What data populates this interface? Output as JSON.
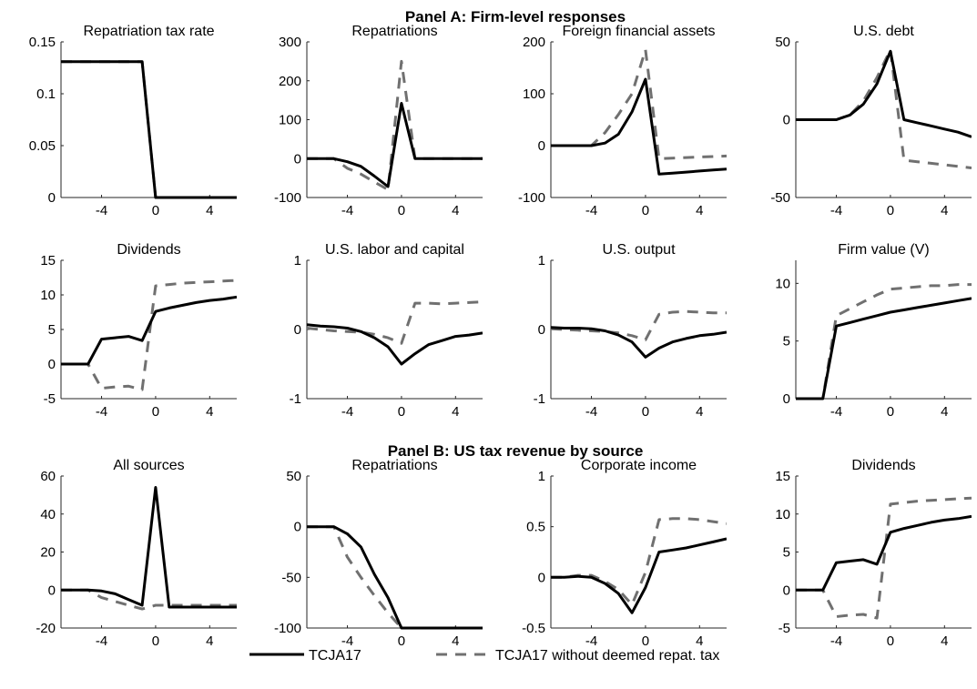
{
  "panels": [
    {
      "title": "Panel A: Firm-level responses"
    },
    {
      "title": "Panel B: US tax revenue by source"
    }
  ],
  "legend": {
    "entries": [
      "TCJA17",
      "TCJA17 without deemed repat. tax"
    ]
  },
  "colors": {
    "series1": "#000000",
    "series2": "#707070"
  },
  "chart_data": [
    {
      "type": "line",
      "title": "Repatriation tax rate",
      "panel": "Panel A: Firm-level responses",
      "xlim": [
        -7,
        6
      ],
      "ylim": [
        0,
        0.15
      ],
      "xticks": [
        -4,
        0,
        4
      ],
      "yticks": [
        0,
        0.05,
        0.1,
        0.15
      ],
      "ytick_labels": [
        "0",
        "0.05",
        "0.1",
        "0.15"
      ],
      "series": [
        {
          "name": "TCJA17",
          "x": [
            -7,
            -6,
            -5,
            -4,
            -3,
            -2,
            -1,
            0,
            1,
            2,
            3,
            4,
            5,
            6
          ],
          "y": [
            0.131,
            0.131,
            0.131,
            0.131,
            0.131,
            0.131,
            0.131,
            0,
            0,
            0,
            0,
            0,
            0,
            0
          ]
        },
        {
          "name": "TCJA17 without deemed repat. tax",
          "x": [
            -7,
            -6,
            -5,
            -4,
            -3,
            -2,
            -1,
            0,
            1,
            2,
            3,
            4,
            5,
            6
          ],
          "y": [
            0.131,
            0.131,
            0.131,
            0.131,
            0.131,
            0.131,
            0.131,
            0,
            0,
            0,
            0,
            0,
            0,
            0
          ]
        }
      ]
    },
    {
      "type": "line",
      "title": "Repatriations",
      "panel": "Panel A: Firm-level responses",
      "xlim": [
        -7,
        6
      ],
      "ylim": [
        -100,
        300
      ],
      "xticks": [
        -4,
        0,
        4
      ],
      "yticks": [
        -100,
        0,
        100,
        200,
        300
      ],
      "ytick_labels": [
        "-100",
        "0",
        "100",
        "200",
        "300"
      ],
      "series": [
        {
          "name": "TCJA17",
          "x": [
            -7,
            -6,
            -5,
            -4,
            -3,
            -2,
            -1,
            0,
            1,
            2,
            3,
            4,
            5,
            6
          ],
          "y": [
            0,
            0,
            0,
            -8,
            -20,
            -45,
            -72,
            142,
            0,
            0,
            0,
            0,
            0,
            0
          ]
        },
        {
          "name": "TCJA17 without deemed repat. tax",
          "x": [
            -7,
            -6,
            -5,
            -4,
            -3,
            -2,
            -1,
            0,
            1,
            2,
            3,
            4,
            5,
            6
          ],
          "y": [
            0,
            0,
            0,
            -25,
            -40,
            -60,
            -80,
            250,
            0,
            0,
            0,
            0,
            0,
            0
          ]
        }
      ]
    },
    {
      "type": "line",
      "title": "Foreign financial assets",
      "panel": "Panel A: Firm-level responses",
      "xlim": [
        -7,
        6
      ],
      "ylim": [
        -100,
        200
      ],
      "xticks": [
        -4,
        0,
        4
      ],
      "yticks": [
        -100,
        0,
        100,
        200
      ],
      "ytick_labels": [
        "-100",
        "0",
        "100",
        "200"
      ],
      "series": [
        {
          "name": "TCJA17",
          "x": [
            -7,
            -6,
            -5,
            -4,
            -3,
            -2,
            -1,
            0,
            1,
            2,
            3,
            4,
            5,
            6
          ],
          "y": [
            0,
            0,
            0,
            0,
            5,
            22,
            65,
            128,
            -55,
            -53,
            -51,
            -49,
            -47,
            -45
          ]
        },
        {
          "name": "TCJA17 without deemed repat. tax",
          "x": [
            -7,
            -6,
            -5,
            -4,
            -3,
            -2,
            -1,
            0,
            1,
            2,
            3,
            4,
            5,
            6
          ],
          "y": [
            0,
            0,
            0,
            0,
            25,
            60,
            100,
            185,
            -25,
            -24,
            -23,
            -22,
            -21,
            -20
          ]
        }
      ]
    },
    {
      "type": "line",
      "title": "U.S. debt",
      "panel": "Panel A: Firm-level responses",
      "xlim": [
        -7,
        6
      ],
      "ylim": [
        -50,
        50
      ],
      "xticks": [
        -4,
        0,
        4
      ],
      "yticks": [
        -50,
        0,
        50
      ],
      "ytick_labels": [
        "-50",
        "0",
        "50"
      ],
      "series": [
        {
          "name": "TCJA17",
          "x": [
            -7,
            -6,
            -5,
            -4,
            -3,
            -2,
            -1,
            0,
            1,
            2,
            3,
            4,
            5,
            6
          ],
          "y": [
            0,
            0,
            0,
            0,
            3,
            10,
            23,
            44,
            0,
            -2,
            -4,
            -6,
            -8,
            -11
          ]
        },
        {
          "name": "TCJA17 without deemed repat. tax",
          "x": [
            -7,
            -6,
            -5,
            -4,
            -3,
            -2,
            -1,
            0,
            1,
            2,
            3,
            4,
            5,
            6
          ],
          "y": [
            0,
            0,
            0,
            0,
            3,
            12,
            27,
            45,
            -26,
            -27,
            -28,
            -29,
            -30,
            -31
          ]
        }
      ]
    },
    {
      "type": "line",
      "title": "Dividends",
      "panel": "Panel A: Firm-level responses",
      "xlim": [
        -7,
        6
      ],
      "ylim": [
        -5,
        15
      ],
      "xticks": [
        -4,
        0,
        4
      ],
      "yticks": [
        -5,
        0,
        5,
        10,
        15
      ],
      "ytick_labels": [
        "-5",
        "0",
        "5",
        "10",
        "15"
      ],
      "series": [
        {
          "name": "TCJA17",
          "x": [
            -7,
            -6,
            -5,
            -4,
            -3,
            -2,
            -1,
            0,
            1,
            2,
            3,
            4,
            5,
            6
          ],
          "y": [
            0,
            0,
            0,
            3.6,
            3.8,
            4.0,
            3.4,
            7.6,
            8.1,
            8.5,
            8.9,
            9.2,
            9.4,
            9.7
          ]
        },
        {
          "name": "TCJA17 without deemed repat. tax",
          "x": [
            -7,
            -6,
            -5,
            -4,
            -3,
            -2,
            -1,
            0,
            1,
            2,
            3,
            4,
            5,
            6
          ],
          "y": [
            0,
            0,
            0,
            -3.5,
            -3.3,
            -3.2,
            -3.7,
            11.3,
            11.5,
            11.7,
            11.8,
            11.9,
            12.0,
            12.1
          ]
        }
      ]
    },
    {
      "type": "line",
      "title": "U.S. labor and capital",
      "panel": "Panel A: Firm-level responses",
      "xlim": [
        -7,
        6
      ],
      "ylim": [
        -1,
        1
      ],
      "xticks": [
        -4,
        0,
        4
      ],
      "yticks": [
        -1,
        0,
        1
      ],
      "ytick_labels": [
        "-1",
        "0",
        "1"
      ],
      "series": [
        {
          "name": "TCJA17",
          "x": [
            -7,
            -6,
            -5,
            -4,
            -3,
            -2,
            -1,
            0,
            1,
            2,
            3,
            4,
            5,
            6
          ],
          "y": [
            0.07,
            0.05,
            0.04,
            0.02,
            -0.03,
            -0.12,
            -0.25,
            -0.5,
            -0.35,
            -0.22,
            -0.16,
            -0.1,
            -0.08,
            -0.05
          ]
        },
        {
          "name": "TCJA17 without deemed repat. tax",
          "x": [
            -7,
            -6,
            -5,
            -4,
            -3,
            -2,
            -1,
            0,
            1,
            2,
            3,
            4,
            5,
            6
          ],
          "y": [
            0.02,
            0,
            -0.02,
            -0.03,
            -0.04,
            -0.07,
            -0.12,
            -0.2,
            0.38,
            0.38,
            0.37,
            0.38,
            0.39,
            0.4
          ]
        }
      ]
    },
    {
      "type": "line",
      "title": "U.S. output",
      "panel": "Panel A: Firm-level responses",
      "xlim": [
        -7,
        6
      ],
      "ylim": [
        -1,
        1
      ],
      "xticks": [
        -4,
        0,
        4
      ],
      "yticks": [
        -1,
        0,
        1
      ],
      "ytick_labels": [
        "-1",
        "0",
        "1"
      ],
      "series": [
        {
          "name": "TCJA17",
          "x": [
            -7,
            -6,
            -5,
            -4,
            -3,
            -2,
            -1,
            0,
            1,
            2,
            3,
            4,
            5,
            6
          ],
          "y": [
            0.03,
            0.02,
            0.02,
            0.01,
            -0.02,
            -0.08,
            -0.18,
            -0.4,
            -0.27,
            -0.18,
            -0.13,
            -0.09,
            -0.07,
            -0.04
          ]
        },
        {
          "name": "TCJA17 without deemed repat. tax",
          "x": [
            -7,
            -6,
            -5,
            -4,
            -3,
            -2,
            -1,
            0,
            1,
            2,
            3,
            4,
            5,
            6
          ],
          "y": [
            0.01,
            0,
            -0.01,
            -0.02,
            -0.03,
            -0.05,
            -0.09,
            -0.15,
            0.22,
            0.25,
            0.26,
            0.25,
            0.24,
            0.24
          ]
        }
      ]
    },
    {
      "type": "line",
      "title": "Firm value (V)",
      "panel": "Panel A: Firm-level responses",
      "xlim": [
        -7,
        6
      ],
      "ylim": [
        0,
        12
      ],
      "xticks": [
        -4,
        0,
        4
      ],
      "yticks": [
        0,
        5,
        10
      ],
      "ytick_labels": [
        "0",
        "5",
        "10"
      ],
      "series": [
        {
          "name": "TCJA17",
          "x": [
            -7,
            -6,
            -5,
            -4,
            -3,
            -2,
            -1,
            0,
            1,
            2,
            3,
            4,
            5,
            6
          ],
          "y": [
            0,
            0,
            0,
            6.3,
            6.6,
            6.9,
            7.2,
            7.5,
            7.7,
            7.9,
            8.1,
            8.3,
            8.5,
            8.7
          ]
        },
        {
          "name": "TCJA17 without deemed repat. tax",
          "x": [
            -7,
            -6,
            -5,
            -4,
            -3,
            -2,
            -1,
            0,
            1,
            2,
            3,
            4,
            5,
            6
          ],
          "y": [
            0,
            0,
            0,
            7.2,
            7.8,
            8.4,
            9.0,
            9.5,
            9.6,
            9.7,
            9.8,
            9.8,
            9.9,
            9.9
          ]
        }
      ]
    },
    {
      "type": "line",
      "title": "All sources",
      "panel": "Panel B: US tax revenue by source",
      "xlim": [
        -7,
        6
      ],
      "ylim": [
        -20,
        60
      ],
      "xticks": [
        -4,
        0,
        4
      ],
      "yticks": [
        -20,
        0,
        20,
        40,
        60
      ],
      "ytick_labels": [
        "-20",
        "0",
        "20",
        "40",
        "60"
      ],
      "series": [
        {
          "name": "TCJA17",
          "x": [
            -7,
            -6,
            -5,
            -4,
            -3,
            -2,
            -1,
            0,
            1,
            2,
            3,
            4,
            5,
            6
          ],
          "y": [
            0,
            0,
            0,
            -0.5,
            -2,
            -5,
            -8,
            54,
            -9,
            -9,
            -9,
            -9,
            -9,
            -9
          ]
        },
        {
          "name": "TCJA17 without deemed repat. tax",
          "x": [
            -7,
            -6,
            -5,
            -4,
            -3,
            -2,
            -1,
            0,
            1,
            2,
            3,
            4,
            5,
            6
          ],
          "y": [
            0,
            0,
            0,
            -4,
            -6,
            -8,
            -10,
            -8,
            -8,
            -8,
            -8,
            -8,
            -8,
            -8
          ]
        }
      ]
    },
    {
      "type": "line",
      "title": "Repatriations",
      "panel": "Panel B: US tax revenue by source",
      "xlim": [
        -7,
        6
      ],
      "ylim": [
        -100,
        50
      ],
      "xticks": [
        -4,
        0,
        4
      ],
      "yticks": [
        -100,
        -50,
        0,
        50
      ],
      "ytick_labels": [
        "-100",
        "-50",
        "0",
        "50"
      ],
      "series": [
        {
          "name": "TCJA17",
          "x": [
            -7,
            -6,
            -5,
            -4,
            -3,
            -2,
            -1,
            0,
            1,
            2,
            3,
            4,
            5,
            6
          ],
          "y": [
            0,
            0,
            0,
            -7,
            -20,
            -47,
            -70,
            -100,
            -100,
            -100,
            -100,
            -100,
            -100,
            -100
          ]
        },
        {
          "name": "TCJA17 without deemed repat. tax",
          "x": [
            -7,
            -6,
            -5,
            -4,
            -3,
            -2,
            -1,
            0,
            1,
            2,
            3,
            4,
            5,
            6
          ],
          "y": [
            0,
            0,
            0,
            -30,
            -50,
            -68,
            -85,
            -100,
            -100,
            -100,
            -100,
            -100,
            -100,
            -100
          ]
        }
      ]
    },
    {
      "type": "line",
      "title": "Corporate income",
      "panel": "Panel B: US tax revenue by source",
      "xlim": [
        -7,
        6
      ],
      "ylim": [
        -0.5,
        1
      ],
      "xticks": [
        -4,
        0,
        4
      ],
      "yticks": [
        -0.5,
        0,
        0.5,
        1
      ],
      "ytick_labels": [
        "-0.5",
        "0",
        "0.5",
        "1"
      ],
      "series": [
        {
          "name": "TCJA17",
          "x": [
            -7,
            -6,
            -5,
            -4,
            -3,
            -2,
            -1,
            0,
            1,
            2,
            3,
            4,
            5,
            6
          ],
          "y": [
            0,
            0,
            0.01,
            0,
            -0.06,
            -0.16,
            -0.35,
            -0.1,
            0.25,
            0.27,
            0.29,
            0.32,
            0.35,
            0.38
          ]
        },
        {
          "name": "TCJA17 without deemed repat. tax",
          "x": [
            -7,
            -6,
            -5,
            -4,
            -3,
            -2,
            -1,
            0,
            1,
            2,
            3,
            4,
            5,
            6
          ],
          "y": [
            0,
            0,
            0.02,
            0.02,
            -0.04,
            -0.12,
            -0.27,
            0.05,
            0.57,
            0.58,
            0.58,
            0.57,
            0.55,
            0.53
          ]
        }
      ]
    },
    {
      "type": "line",
      "title": "Dividends",
      "panel": "Panel B: US tax revenue by source",
      "xlim": [
        -7,
        6
      ],
      "ylim": [
        -5,
        15
      ],
      "xticks": [
        -4,
        0,
        4
      ],
      "yticks": [
        -5,
        0,
        5,
        10,
        15
      ],
      "ytick_labels": [
        "-5",
        "0",
        "5",
        "10",
        "15"
      ],
      "series": [
        {
          "name": "TCJA17",
          "x": [
            -7,
            -6,
            -5,
            -4,
            -3,
            -2,
            -1,
            0,
            1,
            2,
            3,
            4,
            5,
            6
          ],
          "y": [
            0,
            0,
            0,
            3.6,
            3.8,
            4.0,
            3.4,
            7.6,
            8.1,
            8.5,
            8.9,
            9.2,
            9.4,
            9.7
          ]
        },
        {
          "name": "TCJA17 without deemed repat. tax",
          "x": [
            -7,
            -6,
            -5,
            -4,
            -3,
            -2,
            -1,
            0,
            1,
            2,
            3,
            4,
            5,
            6
          ],
          "y": [
            0,
            0,
            0,
            -3.5,
            -3.3,
            -3.2,
            -3.7,
            11.3,
            11.5,
            11.7,
            11.8,
            11.9,
            12.0,
            12.1
          ]
        }
      ]
    }
  ]
}
